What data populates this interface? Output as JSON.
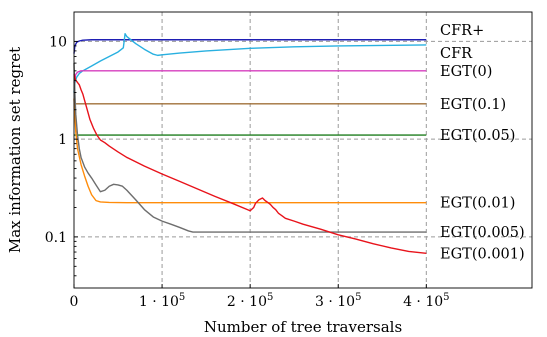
{
  "chart_data": {
    "type": "line",
    "xlabel": "Number of tree traversals",
    "ylabel": "Max information set regret",
    "xlim": [
      0,
      520000
    ],
    "ylim": [
      0.03,
      20
    ],
    "y_scale": "log",
    "grid": true,
    "x_ticks": [
      {
        "value": 0,
        "base": "0",
        "exp": ""
      },
      {
        "value": 100000,
        "base": "1 · 10",
        "exp": "5"
      },
      {
        "value": 200000,
        "base": "2 · 10",
        "exp": "5"
      },
      {
        "value": 300000,
        "base": "3 · 10",
        "exp": "5"
      },
      {
        "value": 400000,
        "base": "4 · 10",
        "exp": "5"
      }
    ],
    "y_ticks": [
      {
        "value": 10,
        "label": "10"
      },
      {
        "value": 1,
        "label": "1"
      },
      {
        "value": 0.1,
        "label": "0.1"
      }
    ],
    "series": [
      {
        "name": "CFR+",
        "color": "#1f1fb4",
        "x": [
          0,
          1000,
          3000,
          6000,
          10000,
          20000,
          50000,
          100000,
          200000,
          300000,
          400000
        ],
        "y": [
          7.5,
          9.0,
          9.8,
          10.1,
          10.3,
          10.4,
          10.4,
          10.4,
          10.4,
          10.4,
          10.4
        ]
      },
      {
        "name": "CFR",
        "color": "#29b0e0",
        "x": [
          0,
          1000,
          3000,
          6000,
          10000,
          20000,
          30000,
          40000,
          50000,
          56000,
          58000,
          60000,
          70000,
          80000,
          90000,
          95000,
          100000,
          120000,
          150000,
          200000,
          250000,
          300000,
          350000,
          400000
        ],
        "y": [
          3.0,
          3.8,
          4.3,
          4.7,
          5.0,
          5.6,
          6.3,
          7.0,
          7.8,
          8.6,
          12.0,
          11.2,
          9.5,
          8.3,
          7.4,
          7.2,
          7.3,
          7.6,
          8.0,
          8.5,
          8.8,
          9.0,
          9.1,
          9.2
        ]
      },
      {
        "name": "EGT(0)",
        "color": "#d63fbf",
        "x": [
          0,
          2000,
          4000,
          8000,
          20000,
          100000,
          200000,
          300000,
          400000
        ],
        "y": [
          3.8,
          4.6,
          4.85,
          5.0,
          5.0,
          5.0,
          5.0,
          5.0,
          5.0
        ]
      },
      {
        "name": "EGT(0.1)",
        "color": "#a0703a",
        "x": [
          0,
          5000,
          100000,
          200000,
          300000,
          400000
        ],
        "y": [
          2.3,
          2.3,
          2.3,
          2.3,
          2.3,
          2.3
        ]
      },
      {
        "name": "EGT(0.05)",
        "color": "#1e7d1e",
        "x": [
          0,
          5000,
          100000,
          200000,
          300000,
          400000
        ],
        "y": [
          1.1,
          1.1,
          1.1,
          1.1,
          1.1,
          1.1
        ]
      },
      {
        "name": "EGT(0.01)",
        "color": "#ff8c0a",
        "x": [
          0,
          2000,
          4000,
          8000,
          12000,
          16000,
          20000,
          25000,
          30000,
          40000,
          60000,
          100000,
          200000,
          300000,
          400000
        ],
        "y": [
          2.6,
          1.2,
          0.8,
          0.55,
          0.42,
          0.33,
          0.27,
          0.235,
          0.228,
          0.225,
          0.224,
          0.224,
          0.224,
          0.224,
          0.224
        ]
      },
      {
        "name": "EGT(0.005)",
        "color": "#6e6e6e",
        "x": [
          0,
          1000,
          2000,
          4000,
          6000,
          8000,
          12000,
          16000,
          20000,
          25000,
          30000,
          35000,
          40000,
          45000,
          50000,
          55000,
          60000,
          70000,
          80000,
          90000,
          100000,
          110000,
          120000,
          130000,
          135000,
          150000,
          200000,
          300000,
          400000
        ],
        "y": [
          6.0,
          3.0,
          1.8,
          1.1,
          0.8,
          0.65,
          0.52,
          0.45,
          0.4,
          0.34,
          0.29,
          0.3,
          0.33,
          0.345,
          0.34,
          0.33,
          0.3,
          0.24,
          0.19,
          0.16,
          0.145,
          0.135,
          0.125,
          0.115,
          0.112,
          0.112,
          0.112,
          0.112,
          0.112
        ]
      },
      {
        "name": "EGT(0.001)",
        "color": "#e8131b",
        "x": [
          0,
          2000,
          4000,
          6000,
          8000,
          10000,
          12000,
          15000,
          18000,
          22000,
          26000,
          30000,
          35000,
          40000,
          50000,
          60000,
          80000,
          100000,
          120000,
          140000,
          160000,
          180000,
          200000,
          204000,
          206000,
          210000,
          214000,
          217000,
          220000,
          223000,
          226000,
          229000,
          232000,
          236000,
          240000,
          250000,
          260000,
          280000,
          300000,
          320000,
          340000,
          360000,
          380000,
          400000
        ],
        "y": [
          4.6,
          4.0,
          3.8,
          3.6,
          3.2,
          2.9,
          2.5,
          2.0,
          1.6,
          1.3,
          1.1,
          0.98,
          0.92,
          0.85,
          0.74,
          0.65,
          0.53,
          0.44,
          0.37,
          0.31,
          0.26,
          0.22,
          0.185,
          0.2,
          0.22,
          0.24,
          0.25,
          0.235,
          0.225,
          0.215,
          0.2,
          0.19,
          0.175,
          0.165,
          0.155,
          0.145,
          0.135,
          0.12,
          0.105,
          0.095,
          0.085,
          0.077,
          0.071,
          0.068
        ]
      }
    ]
  }
}
